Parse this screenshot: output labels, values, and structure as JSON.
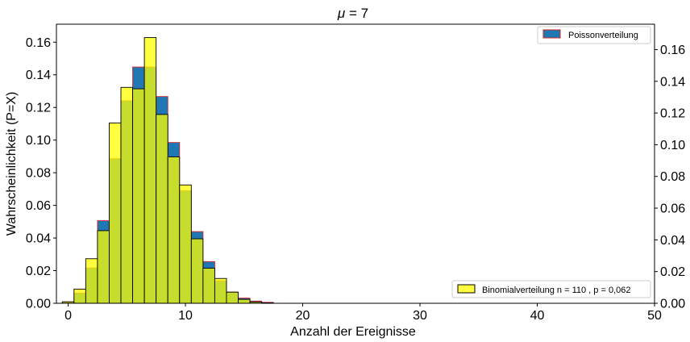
{
  "chart_data": {
    "type": "bar",
    "title_symbol": "μ",
    "title_rest": " = 7",
    "xlabel": "Anzahl der Ereignisse",
    "ylabel": "Wahrscheinlichkeit (P=X)",
    "xlim": [
      -1,
      50
    ],
    "ylim": [
      0,
      0.171
    ],
    "ylim_right": [
      0,
      0.176
    ],
    "x_ticks": [
      0,
      10,
      20,
      30,
      40,
      50
    ],
    "y_ticks": [
      0.0,
      0.02,
      0.04,
      0.06,
      0.08,
      0.1,
      0.12,
      0.14,
      0.16
    ],
    "y_tick_labels": [
      "0.00",
      "0.02",
      "0.04",
      "0.06",
      "0.08",
      "0.10",
      "0.12",
      "0.14",
      "0.16"
    ],
    "grid": false,
    "x": [
      0,
      1,
      2,
      3,
      4,
      5,
      6,
      7,
      8,
      9,
      10,
      11,
      12,
      13,
      14,
      15,
      16,
      17
    ],
    "series": [
      {
        "name": "Poissonverteilung",
        "axis": "right",
        "color": "#1f77b4",
        "edge_color": "#d62728",
        "legend_position": "top-right",
        "values": [
          0.0009,
          0.0064,
          0.0223,
          0.0521,
          0.0912,
          0.1277,
          0.149,
          0.149,
          0.1304,
          0.1014,
          0.071,
          0.0452,
          0.0263,
          0.0142,
          0.0071,
          0.0033,
          0.0014,
          0.0006
        ]
      },
      {
        "name": "Binomialverteilung n = 110 , p = 0,062",
        "axis": "left",
        "color": "#ffff00",
        "alpha": 0.75,
        "edge_color": "#000000",
        "legend_position": "bottom-right",
        "values": [
          0.0009,
          0.0087,
          0.0273,
          0.0445,
          0.1105,
          0.1323,
          0.1314,
          0.1628,
          0.1157,
          0.0897,
          0.0725,
          0.0395,
          0.0215,
          0.0152,
          0.0068,
          0.0024,
          0.0008,
          0.0003
        ]
      }
    ]
  }
}
